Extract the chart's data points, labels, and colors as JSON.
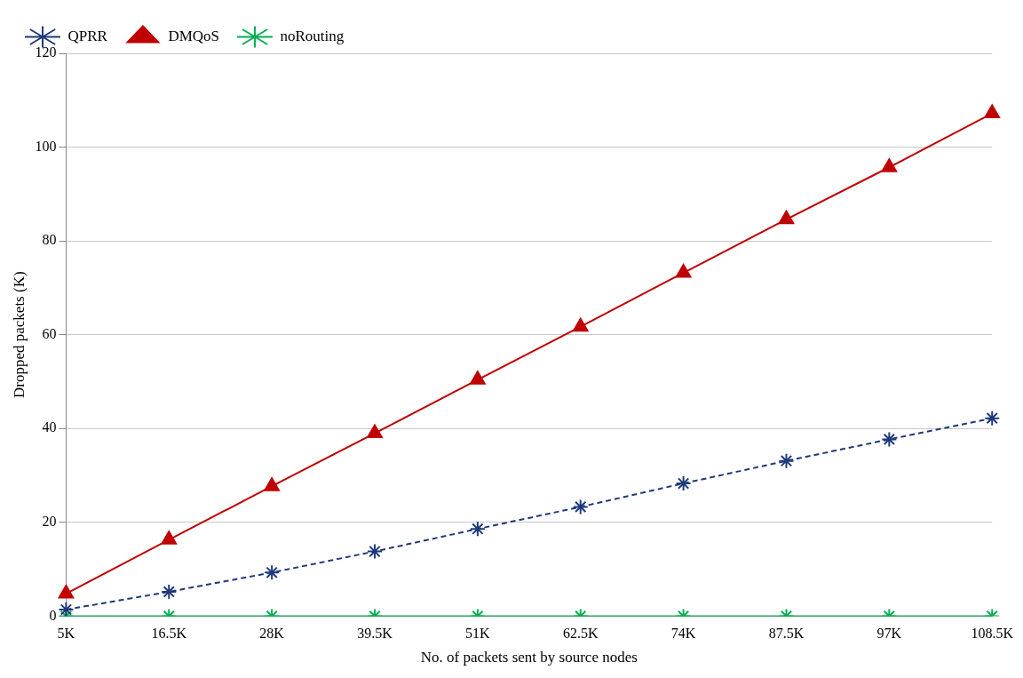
{
  "chart_data": {
    "type": "line",
    "xlabel": "No. of packets sent by source nodes",
    "ylabel": "Dropped packets (K)",
    "categories": [
      "5K",
      "16.5K",
      "28K",
      "39.5K",
      "51K",
      "62.5K",
      "74K",
      "87.5K",
      "97K",
      "108.5K"
    ],
    "series": [
      {
        "name": "QPRR",
        "color": "#1f3a7a",
        "marker": "cross",
        "line_style": "dashed",
        "values": [
          1.4,
          5.2,
          9.3,
          13.8,
          18.6,
          23.3,
          28.3,
          33.1,
          37.7,
          42.2
        ]
      },
      {
        "name": "DMQoS",
        "color": "#c00000",
        "marker": "triangle",
        "line_style": "solid",
        "values": [
          4.8,
          16.3,
          27.7,
          39.0,
          50.4,
          61.7,
          73.2,
          84.6,
          95.7,
          107.2
        ]
      },
      {
        "name": "noRouting",
        "color": "#00b050",
        "marker": "cross",
        "line_style": "solid",
        "values": [
          0,
          0,
          0,
          0,
          0,
          0,
          0,
          0,
          0,
          0
        ]
      }
    ],
    "ylim": [
      0,
      120
    ],
    "yticks": [
      0,
      20,
      40,
      60,
      80,
      100,
      120
    ],
    "grid": "y",
    "legend": "top left"
  }
}
